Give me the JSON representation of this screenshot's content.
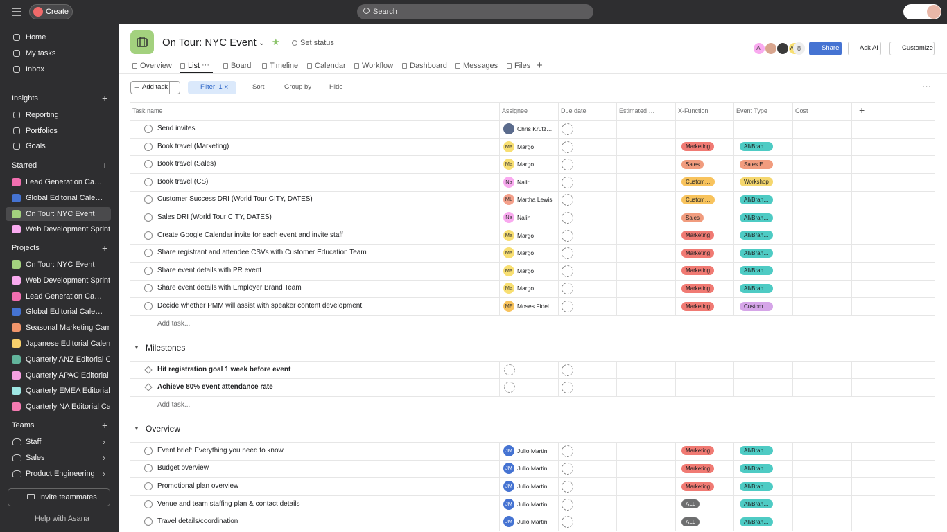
{
  "topbar": {
    "create": "Create",
    "search": "Search"
  },
  "sidebar": {
    "nav": [
      "Home",
      "My tasks",
      "Inbox"
    ],
    "insights": {
      "title": "Insights",
      "items": [
        "Reporting",
        "Portfolios",
        "Goals"
      ]
    },
    "starred": {
      "title": "Starred",
      "items": [
        {
          "label": "Lead Generation Ca…",
          "color": "#f26fb0"
        },
        {
          "label": "Global Editorial Cale…",
          "color": "#4573d2"
        },
        {
          "label": "On Tour: NYC Event",
          "color": "#a3d17e"
        },
        {
          "label": "Web Development Sprint…",
          "color": "#f9aaef"
        }
      ]
    },
    "projects": {
      "title": "Projects",
      "items": [
        {
          "label": "On Tour: NYC Event",
          "color": "#a3d17e"
        },
        {
          "label": "Web Development Sprint…",
          "color": "#f9aaef"
        },
        {
          "label": "Lead Generation Ca…",
          "color": "#f26fb0"
        },
        {
          "label": "Global Editorial Cale…",
          "color": "#4573d2"
        },
        {
          "label": "Seasonal Marketing Cam…",
          "color": "#f1956b"
        },
        {
          "label": "Japanese Editorial Calen…",
          "color": "#f8d06b"
        },
        {
          "label": "Quarterly ANZ Editorial C…",
          "color": "#62b59c"
        },
        {
          "label": "Quarterly APAC Editorial …",
          "color": "#f59fe0"
        },
        {
          "label": "Quarterly EMEA Editorial…",
          "color": "#9ee7e3"
        },
        {
          "label": "Quarterly NA Editorial Ca…",
          "color": "#f57bb1"
        }
      ]
    },
    "teams": {
      "title": "Teams",
      "items": [
        "Staff",
        "Sales",
        "Product Engineering"
      ]
    },
    "invite": "Invite teammates",
    "help": "Help with Asana"
  },
  "header": {
    "title": "On Tour: NYC Event",
    "set_status": "Set status",
    "avatars": [
      "AI",
      "AW"
    ],
    "member_count": "8",
    "share": "Share",
    "ask_ai": "Ask AI",
    "customize": "Customize"
  },
  "tabs": [
    "Overview",
    "List",
    "Board",
    "Timeline",
    "Calendar",
    "Workflow",
    "Dashboard",
    "Messages",
    "Files"
  ],
  "toolbar": {
    "add_task": "Add task",
    "filter": "Filter: 1",
    "sort": "Sort",
    "group_by": "Group by",
    "hide": "Hide"
  },
  "table": {
    "columns": [
      "Task name",
      "Assignee",
      "Due date",
      "Estimated …",
      "X-Function",
      "Event Type",
      "Cost"
    ],
    "sections": [
      {
        "add_task": "Add task...",
        "tasks": [
          {
            "name": "Send invites",
            "assignee": "Chris Krutz…",
            "avatar_color": "#5a6b8c"
          },
          {
            "name": "Book travel (Marketing)",
            "initials": "Ma",
            "assignee": "Margo",
            "avatar_color": "#f8df72",
            "x_function": {
              "label": "Marketing",
              "color": "#f07a73"
            },
            "event_type": {
              "label": "All/Bran…",
              "color": "#4ecbc4"
            }
          },
          {
            "name": "Book travel (Sales)",
            "initials": "Ma",
            "assignee": "Margo",
            "avatar_color": "#f8df72",
            "x_function": {
              "label": "Sales",
              "color": "#f19c7e"
            },
            "event_type": {
              "label": "Sales E…",
              "color": "#f19c7e"
            }
          },
          {
            "name": "Book travel (CS)",
            "initials": "Na",
            "assignee": "Nalin",
            "avatar_color": "#f9aaef",
            "x_function": {
              "label": "Custom…",
              "color": "#f8c35d"
            },
            "event_type": {
              "label": "Workshop",
              "color": "#f5d76e"
            }
          },
          {
            "name": "Customer Success DRI (World Tour CITY, DATES)",
            "initials": "ML",
            "assignee": "Martha Lewis",
            "avatar_color": "#f4a08a",
            "x_function": {
              "label": "Custom…",
              "color": "#f8c35d"
            },
            "event_type": {
              "label": "All/Bran…",
              "color": "#4ecbc4"
            }
          },
          {
            "name": "Sales DRI (World Tour CITY, DATES)",
            "initials": "Na",
            "assignee": "Nalin",
            "avatar_color": "#f9aaef",
            "x_function": {
              "label": "Sales",
              "color": "#f19c7e"
            },
            "event_type": {
              "label": "All/Bran…",
              "color": "#4ecbc4"
            }
          },
          {
            "name": "Create Google Calendar invite for each event and invite staff",
            "initials": "Ma",
            "assignee": "Margo",
            "avatar_color": "#f8df72",
            "x_function": {
              "label": "Marketing",
              "color": "#f07a73"
            },
            "event_type": {
              "label": "All/Bran…",
              "color": "#4ecbc4"
            }
          },
          {
            "name": "Share registrant and attendee CSVs with Customer Education Team",
            "initials": "Ma",
            "assignee": "Margo",
            "avatar_color": "#f8df72",
            "x_function": {
              "label": "Marketing",
              "color": "#f07a73"
            },
            "event_type": {
              "label": "All/Bran…",
              "color": "#4ecbc4"
            }
          },
          {
            "name": "Share event details with PR event",
            "initials": "Ma",
            "assignee": "Margo",
            "avatar_color": "#f8df72",
            "x_function": {
              "label": "Marketing",
              "color": "#f07a73"
            },
            "event_type": {
              "label": "All/Bran…",
              "color": "#4ecbc4"
            }
          },
          {
            "name": "Share event details with Employer Brand Team",
            "initials": "Ma",
            "assignee": "Margo",
            "avatar_color": "#f8df72",
            "x_function": {
              "label": "Marketing",
              "color": "#f07a73"
            },
            "event_type": {
              "label": "All/Bran…",
              "color": "#4ecbc4"
            }
          },
          {
            "name": "Decide whether PMM will assist with speaker content development",
            "initials": "MF",
            "assignee": "Moses Fidel",
            "avatar_color": "#f8c35d",
            "x_function": {
              "label": "Marketing",
              "color": "#f07a73"
            },
            "event_type": {
              "label": "Custom…",
              "color": "#d5a5e8"
            }
          }
        ]
      },
      {
        "title": "Milestones",
        "add_task": "Add task...",
        "tasks": [
          {
            "name": "Hit registration goal 1 week before event"
          },
          {
            "name": "Achieve 80% event attendance rate"
          }
        ]
      },
      {
        "title": "Overview",
        "tasks": [
          {
            "name": "Event brief: Everything you need to know",
            "initials": "JM",
            "assignee": "Julio Martin",
            "avatar_color": "#4573d2",
            "x_function": {
              "label": "Marketing",
              "color": "#f07a73"
            },
            "event_type": {
              "label": "All/Bran…",
              "color": "#4ecbc4"
            }
          },
          {
            "name": "Budget overview",
            "initials": "JM",
            "assignee": "Julio Martin",
            "avatar_color": "#4573d2",
            "x_function": {
              "label": "Marketing",
              "color": "#f07a73"
            },
            "event_type": {
              "label": "All/Bran…",
              "color": "#4ecbc4"
            }
          },
          {
            "name": "Promotional plan overview",
            "initials": "JM",
            "assignee": "Julio Martin",
            "avatar_color": "#4573d2",
            "x_function": {
              "label": "Marketing",
              "color": "#f07a73"
            },
            "event_type": {
              "label": "All/Bran…",
              "color": "#4ecbc4"
            }
          },
          {
            "name": "Venue and team staffing plan & contact details",
            "initials": "JM",
            "assignee": "Julio Martin",
            "avatar_color": "#4573d2",
            "x_function": {
              "label": "ALL",
              "color": "#6d6e6f"
            },
            "event_type": {
              "label": "All/Bran…",
              "color": "#4ecbc4"
            }
          },
          {
            "name": "Travel details/coordination",
            "initials": "JM",
            "assignee": "Julio Martin",
            "avatar_color": "#4573d2",
            "x_function": {
              "label": "ALL",
              "color": "#6d6e6f"
            },
            "event_type": {
              "label": "All/Bran…",
              "color": "#4ecbc4"
            }
          }
        ]
      }
    ]
  }
}
